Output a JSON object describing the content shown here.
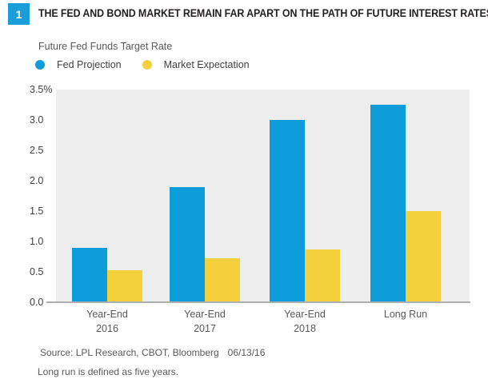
{
  "figure": {
    "number": "1"
  },
  "header": {
    "title": "THE FED AND BOND MARKET REMAIN FAR APART ON THE PATH OF FUTURE INTEREST RATES"
  },
  "chart": {
    "subtitle": "Future Fed Funds Target Rate",
    "legend": {
      "items": [
        {
          "label": "Fed Projection"
        },
        {
          "label": "Market Expectation"
        }
      ]
    }
  },
  "footer": {
    "source_label": "Source: LPL Research, CBOT, Bloomberg",
    "source_date": "06/13/16",
    "footnote": "Long run is defined as five years."
  },
  "colors": {
    "fed_blue": "#0d9ddb",
    "market_yellow": "#f5d03d",
    "badge_blue": "#1b9dd9",
    "plot_background": "#ededee",
    "axis_line": "#adafb2",
    "title_text": "#231f20",
    "gray_text": "#58595b"
  },
  "chart_data": {
    "type": "bar",
    "title": "Future Fed Funds Target Rate",
    "categories": [
      "Year-End 2016",
      "Year-End 2017",
      "Year-End 2018",
      "Long Run"
    ],
    "category_lines": [
      [
        "Year-End",
        "2016"
      ],
      [
        "Year-End",
        "2017"
      ],
      [
        "Year-End",
        "2018"
      ],
      [
        "Long Run"
      ]
    ],
    "series": [
      {
        "name": "Fed Projection",
        "color": "#0d9ddb",
        "values": [
          0.9,
          1.9,
          3.0,
          3.25
        ]
      },
      {
        "name": "Market Expectation",
        "color": "#f5d03d",
        "values": [
          0.53,
          0.73,
          0.87,
          1.5
        ]
      }
    ],
    "xlabel": "",
    "ylabel": "",
    "ylim": [
      0,
      3.5
    ],
    "yticks": [
      3.5,
      3.0,
      2.5,
      2.0,
      1.5,
      1.0,
      0.5,
      0.0
    ],
    "ytick_labels": [
      "3.5%",
      "3.0",
      "2.5",
      "2.0",
      "1.5",
      "1.0",
      "0.5",
      "0.0"
    ],
    "grid": false,
    "legend_position": "top-left"
  }
}
